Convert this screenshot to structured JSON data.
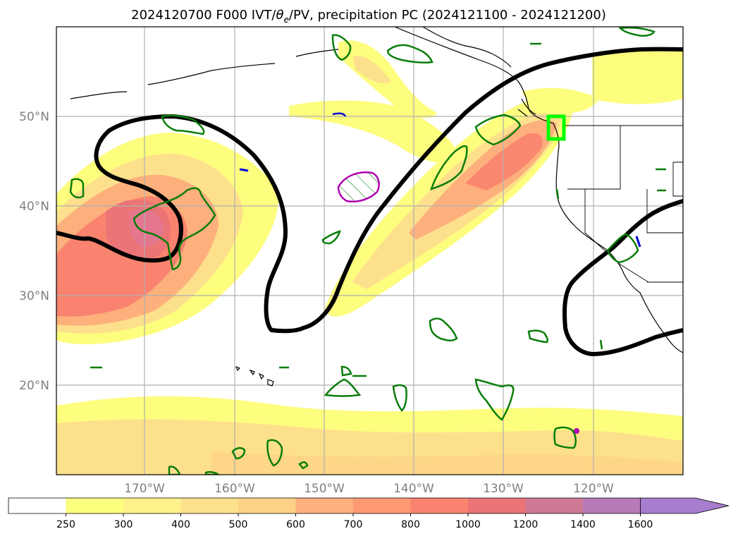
{
  "title_main": "2024120700 F000 IVT/",
  "title_sym": "θ",
  "title_sub": "e",
  "title_rest": "/PV, precipitation PC (2024121100 - 2024121200)",
  "lat_labels": [
    "50°N",
    "40°N",
    "30°N",
    "20°N"
  ],
  "lon_labels": [
    "170°W",
    "160°W",
    "150°W",
    "140°W",
    "130°W",
    "120°W"
  ],
  "colorbar": {
    "ticks": [
      "250",
      "300",
      "400",
      "500",
      "600",
      "700",
      "800",
      "1000",
      "1200",
      "1400",
      "1600"
    ],
    "colors": [
      "#ffffff",
      "#fdfd7e",
      "#fdf18a",
      "#fde08c",
      "#fdd286",
      "#fdb07c",
      "#fd9a74",
      "#f9836f",
      "#eb7476",
      "#cf7a95",
      "#b57ab7",
      "#a77dcd"
    ]
  },
  "colors": {
    "pv": "#0a7d0a",
    "theta_e": "#000000",
    "box": "#00ff00",
    "neg_pv_blue": "#0000dd",
    "magenta": "#b000b0"
  }
}
